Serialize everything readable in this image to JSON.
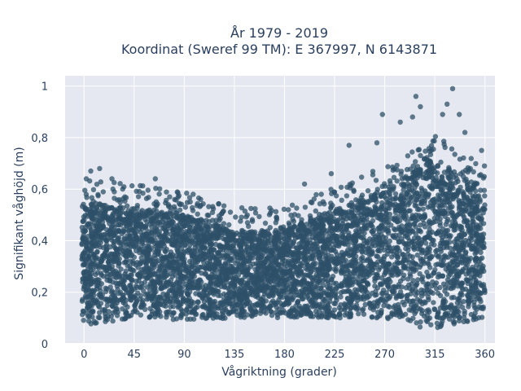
{
  "chart_data": {
    "type": "scatter",
    "title_lines": [
      "År 1979 - 2019",
      "Koordinat (Sweref 99 TM): E 367997, N 6143871"
    ],
    "xlabel": "Vågriktning (grader)",
    "ylabel": "Signifikant våghöjd (m)",
    "xlim": [
      -17,
      369
    ],
    "ylim": [
      0,
      1.04
    ],
    "xticks": [
      0,
      45,
      90,
      135,
      180,
      225,
      270,
      315,
      360
    ],
    "xtick_labels": [
      "0",
      "45",
      "90",
      "135",
      "180",
      "225",
      "270",
      "315",
      "360"
    ],
    "yticks": [
      0,
      0.2,
      0.4,
      0.6,
      0.8,
      1
    ],
    "ytick_labels": [
      "0",
      "0,2",
      "0,4",
      "0,6",
      "0,8",
      "1"
    ],
    "grid": true,
    "marker_color": "#2e5068",
    "plot_bg": "#e5e8f0",
    "envelope": {
      "x": [
        -2,
        0,
        45,
        90,
        135,
        180,
        225,
        270,
        315,
        360
      ],
      "lower": [
        0.1,
        0.07,
        0.1,
        0.09,
        0.1,
        0.1,
        0.1,
        0.1,
        0.05,
        0.1
      ],
      "upper": [
        0.54,
        0.55,
        0.53,
        0.5,
        0.44,
        0.44,
        0.52,
        0.6,
        0.72,
        0.6
      ]
    },
    "highlight_points": [
      {
        "x": 2,
        "y": 0.64
      },
      {
        "x": 6,
        "y": 0.67
      },
      {
        "x": 14,
        "y": 0.68
      },
      {
        "x": 25,
        "y": 0.64
      },
      {
        "x": 64,
        "y": 0.64
      },
      {
        "x": 98,
        "y": 0.58
      },
      {
        "x": 198,
        "y": 0.62
      },
      {
        "x": 222,
        "y": 0.66
      },
      {
        "x": 238,
        "y": 0.77
      },
      {
        "x": 263,
        "y": 0.78
      },
      {
        "x": 268,
        "y": 0.89
      },
      {
        "x": 284,
        "y": 0.86
      },
      {
        "x": 295,
        "y": 0.88
      },
      {
        "x": 298,
        "y": 0.96
      },
      {
        "x": 302,
        "y": 0.92
      },
      {
        "x": 322,
        "y": 0.89
      },
      {
        "x": 326,
        "y": 0.93
      },
      {
        "x": 331,
        "y": 0.99
      },
      {
        "x": 337,
        "y": 0.89
      },
      {
        "x": 342,
        "y": 0.82
      },
      {
        "x": 357,
        "y": 0.75
      }
    ]
  }
}
